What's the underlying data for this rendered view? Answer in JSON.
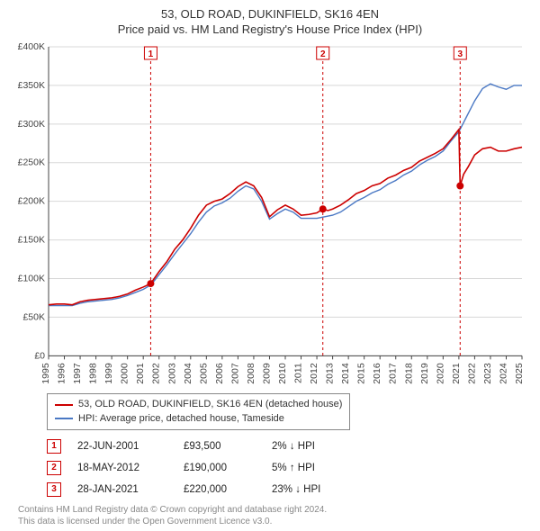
{
  "title": "53, OLD ROAD, DUKINFIELD, SK16 4EN",
  "subtitle": "Price paid vs. HM Land Registry's House Price Index (HPI)",
  "chart": {
    "type": "line",
    "background_color": "#ffffff",
    "grid_color": "#d8d8d8",
    "axis_color": "#444444",
    "x": {
      "min": 1995,
      "max": 2025,
      "tick_step": 1
    },
    "y": {
      "min": 0,
      "max": 400,
      "tick_step": 50,
      "tick_prefix": "£",
      "tick_suffix": "K",
      "tick_fontsize": 10.5
    },
    "series": [
      {
        "name": "53, OLD ROAD, DUKINFIELD, SK16 4EN (detached house)",
        "color": "#cc0000",
        "width": 1.6,
        "points": [
          [
            1995.0,
            66
          ],
          [
            1995.5,
            67
          ],
          [
            1996.0,
            67
          ],
          [
            1996.5,
            66
          ],
          [
            1997.0,
            70
          ],
          [
            1997.5,
            72
          ],
          [
            1998.0,
            73
          ],
          [
            1998.5,
            74
          ],
          [
            1999.0,
            75
          ],
          [
            1999.5,
            77
          ],
          [
            2000.0,
            80
          ],
          [
            2000.5,
            85
          ],
          [
            2001.0,
            89
          ],
          [
            2001.47,
            93.5
          ],
          [
            2002.0,
            109
          ],
          [
            2002.5,
            122
          ],
          [
            2003.0,
            138
          ],
          [
            2003.5,
            150
          ],
          [
            2004.0,
            165
          ],
          [
            2004.5,
            182
          ],
          [
            2005.0,
            195
          ],
          [
            2005.5,
            200
          ],
          [
            2006.0,
            203
          ],
          [
            2006.5,
            210
          ],
          [
            2007.0,
            219
          ],
          [
            2007.5,
            225
          ],
          [
            2008.0,
            220
          ],
          [
            2008.5,
            205
          ],
          [
            2009.0,
            180
          ],
          [
            2009.5,
            189
          ],
          [
            2010.0,
            195
          ],
          [
            2010.5,
            190
          ],
          [
            2011.0,
            182
          ],
          [
            2011.5,
            183
          ],
          [
            2012.0,
            185
          ],
          [
            2012.38,
            190
          ],
          [
            2012.7,
            188
          ],
          [
            2013.0,
            190
          ],
          [
            2013.5,
            195
          ],
          [
            2014.0,
            202
          ],
          [
            2014.5,
            210
          ],
          [
            2015.0,
            214
          ],
          [
            2015.5,
            220
          ],
          [
            2016.0,
            223
          ],
          [
            2016.5,
            230
          ],
          [
            2017.0,
            234
          ],
          [
            2017.5,
            240
          ],
          [
            2018.0,
            244
          ],
          [
            2018.5,
            252
          ],
          [
            2019.0,
            257
          ],
          [
            2019.5,
            262
          ],
          [
            2020.0,
            268
          ],
          [
            2020.5,
            280
          ],
          [
            2021.0,
            293
          ],
          [
            2021.08,
            220
          ],
          [
            2021.3,
            235
          ],
          [
            2021.6,
            245
          ],
          [
            2022.0,
            260
          ],
          [
            2022.5,
            268
          ],
          [
            2023.0,
            270
          ],
          [
            2023.5,
            265
          ],
          [
            2024.0,
            265
          ],
          [
            2024.5,
            268
          ],
          [
            2025.0,
            270
          ]
        ]
      },
      {
        "name": "HPI: Average price, detached house, Tameside",
        "color": "#4a78c4",
        "width": 1.4,
        "points": [
          [
            1995.0,
            65
          ],
          [
            1995.5,
            65
          ],
          [
            1996.0,
            65
          ],
          [
            1996.5,
            65
          ],
          [
            1997.0,
            68
          ],
          [
            1997.5,
            70
          ],
          [
            1998.0,
            71
          ],
          [
            1998.5,
            72
          ],
          [
            1999.0,
            73
          ],
          [
            1999.5,
            75
          ],
          [
            2000.0,
            78
          ],
          [
            2000.5,
            82
          ],
          [
            2001.0,
            86
          ],
          [
            2001.5,
            92
          ],
          [
            2002.0,
            105
          ],
          [
            2002.5,
            118
          ],
          [
            2003.0,
            132
          ],
          [
            2003.5,
            145
          ],
          [
            2004.0,
            158
          ],
          [
            2004.5,
            173
          ],
          [
            2005.0,
            186
          ],
          [
            2005.5,
            194
          ],
          [
            2006.0,
            198
          ],
          [
            2006.5,
            204
          ],
          [
            2007.0,
            213
          ],
          [
            2007.5,
            220
          ],
          [
            2008.0,
            216
          ],
          [
            2008.5,
            200
          ],
          [
            2009.0,
            177
          ],
          [
            2009.5,
            184
          ],
          [
            2010.0,
            190
          ],
          [
            2010.5,
            186
          ],
          [
            2011.0,
            178
          ],
          [
            2011.5,
            178
          ],
          [
            2012.0,
            178
          ],
          [
            2012.5,
            180
          ],
          [
            2013.0,
            182
          ],
          [
            2013.5,
            186
          ],
          [
            2014.0,
            193
          ],
          [
            2014.5,
            200
          ],
          [
            2015.0,
            205
          ],
          [
            2015.5,
            211
          ],
          [
            2016.0,
            215
          ],
          [
            2016.5,
            222
          ],
          [
            2017.0,
            227
          ],
          [
            2017.5,
            234
          ],
          [
            2018.0,
            239
          ],
          [
            2018.5,
            247
          ],
          [
            2019.0,
            253
          ],
          [
            2019.5,
            258
          ],
          [
            2020.0,
            265
          ],
          [
            2020.5,
            278
          ],
          [
            2021.0,
            290
          ],
          [
            2021.5,
            310
          ],
          [
            2022.0,
            330
          ],
          [
            2022.5,
            346
          ],
          [
            2023.0,
            352
          ],
          [
            2023.5,
            348
          ],
          [
            2024.0,
            345
          ],
          [
            2024.5,
            350
          ],
          [
            2025.0,
            350
          ]
        ]
      }
    ],
    "sale_markers": [
      {
        "n": "1",
        "x": 2001.47,
        "date": "22-JUN-2001",
        "price": "£93,500",
        "diff": "2% ↓ HPI",
        "dot_y": 93.5
      },
      {
        "n": "2",
        "x": 2012.38,
        "date": "18-MAY-2012",
        "price": "£190,000",
        "diff": "5% ↑ HPI",
        "dot_y": 190
      },
      {
        "n": "3",
        "x": 2021.08,
        "date": "28-JAN-2021",
        "price": "£220,000",
        "diff": "23% ↓ HPI",
        "dot_y": 220
      }
    ],
    "marker_box": {
      "fill": "#ffffff",
      "stroke": "#cc0000",
      "size": 14,
      "fontsize": 10
    },
    "dot_color": "#cc0000",
    "dot_radius": 4
  },
  "legend": {
    "border_color": "#888888",
    "items": [
      {
        "color": "#cc0000",
        "label": "53, OLD ROAD, DUKINFIELD, SK16 4EN (detached house)"
      },
      {
        "color": "#4a78c4",
        "label": "HPI: Average price, detached house, Tameside"
      }
    ]
  },
  "footer": {
    "line1": "Contains HM Land Registry data © Crown copyright and database right 2024.",
    "line2": "This data is licensed under the Open Government Licence v3.0."
  }
}
